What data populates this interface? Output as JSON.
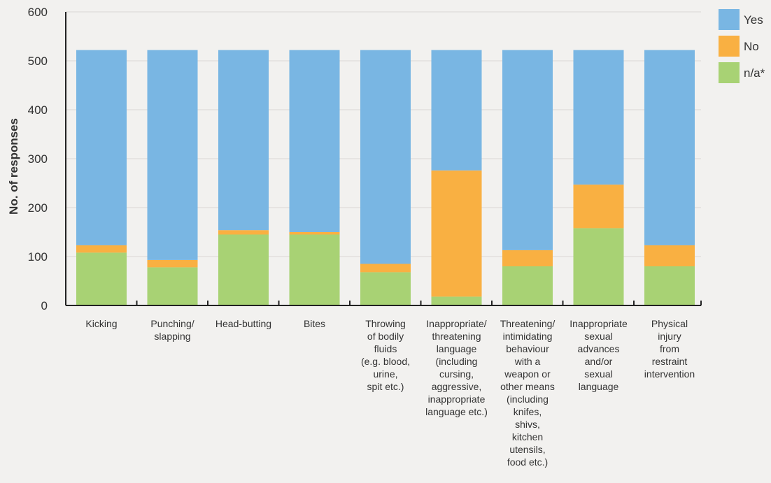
{
  "chart_data": {
    "type": "bar",
    "stacked": true,
    "title": "",
    "xlabel": "",
    "ylabel": "No. of responses",
    "ylim": [
      0,
      600
    ],
    "yticks": [
      0,
      100,
      200,
      300,
      400,
      500,
      600
    ],
    "grid": true,
    "legend_position": "top-right",
    "categories": [
      [
        "Kicking"
      ],
      [
        "Punching/",
        "slapping"
      ],
      [
        "Head-butting"
      ],
      [
        "Bites"
      ],
      [
        "Throwing",
        "of bodily",
        "fluids",
        "(e.g. blood,",
        "urine,",
        "spit etc.)"
      ],
      [
        "Inappropriate/",
        "threatening",
        "language",
        "(including",
        "cursing,",
        "aggressive,",
        "inappropriate",
        "language etc.)"
      ],
      [
        "Threatening/",
        "intimidating",
        "behaviour",
        "with a",
        "weapon or",
        "other means",
        "(including",
        "knifes,",
        "shivs,",
        "kitchen",
        "utensils,",
        "food etc.)"
      ],
      [
        "Inappropriate",
        "sexual",
        "advances",
        "and/or",
        "sexual",
        "language"
      ],
      [
        "Physical",
        "injury",
        "from",
        "restraint",
        "intervention"
      ]
    ],
    "series": [
      {
        "name": "n/a*",
        "color": "#a8d274",
        "values": [
          108,
          78,
          145,
          145,
          68,
          18,
          80,
          158,
          80
        ]
      },
      {
        "name": "No",
        "color": "#f9b042",
        "values": [
          15,
          15,
          9,
          5,
          17,
          258,
          33,
          89,
          43
        ]
      },
      {
        "name": "Yes",
        "color": "#79b6e3",
        "values": [
          399,
          429,
          368,
          372,
          437,
          246,
          409,
          275,
          399
        ]
      }
    ]
  }
}
